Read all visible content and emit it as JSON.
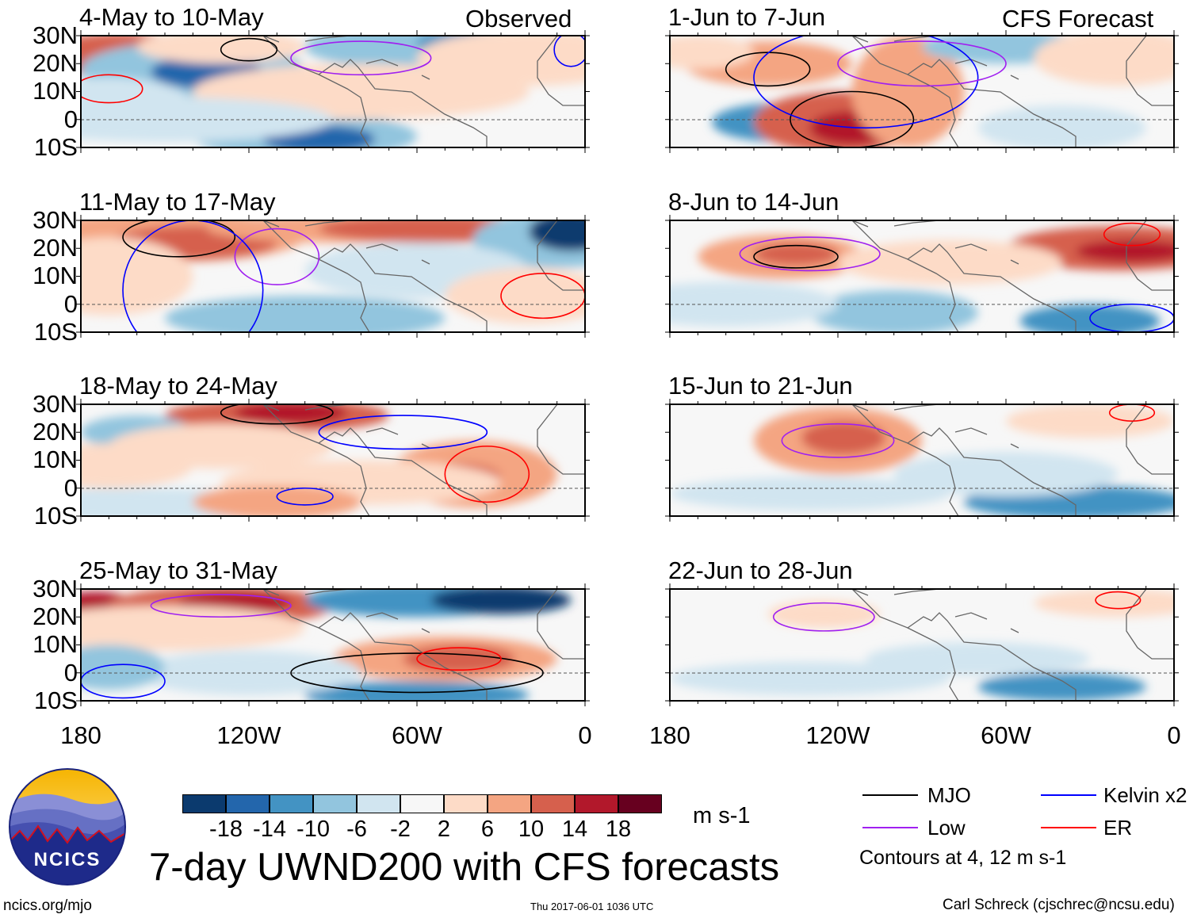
{
  "title": "7-day UWND200 with CFS forecasts",
  "column_labels": {
    "observed": "Observed",
    "forecast": "CFS Forecast"
  },
  "panels": [
    {
      "label": "4-May to 10-May",
      "column": "observed"
    },
    {
      "label": "11-May to 17-May",
      "column": "observed"
    },
    {
      "label": "18-May to 24-May",
      "column": "observed"
    },
    {
      "label": "25-May to 31-May",
      "column": "observed"
    },
    {
      "label": "1-Jun to 7-Jun",
      "column": "forecast"
    },
    {
      "label": "8-Jun to 14-Jun",
      "column": "forecast"
    },
    {
      "label": "15-Jun to 21-Jun",
      "column": "forecast"
    },
    {
      "label": "22-Jun to 28-Jun",
      "column": "forecast"
    }
  ],
  "lat_labels": [
    "30N",
    "20N",
    "10N",
    "0",
    "10S"
  ],
  "lon_labels": [
    "180",
    "120W",
    "60W",
    "0"
  ],
  "colorbar": {
    "ticks": [
      "-18",
      "-14",
      "-10",
      "-6",
      "-2",
      "2",
      "6",
      "10",
      "14",
      "18"
    ],
    "colors": [
      "#0b3a6e",
      "#2366ac",
      "#4393c3",
      "#92c5de",
      "#d1e5f0",
      "#f7f7f7",
      "#fddbc7",
      "#f4a582",
      "#d6604d",
      "#b2182b",
      "#67001f"
    ],
    "units": "m s-1"
  },
  "legend": {
    "items": [
      {
        "label": "MJO",
        "color": "#000000"
      },
      {
        "label": "Kelvin x2",
        "color": "#0000ff"
      },
      {
        "label": "Low",
        "color": "#a020f0"
      },
      {
        "label": "ER",
        "color": "#ff0000"
      }
    ],
    "note": "Contours at 4, 12 m s-1"
  },
  "logo_text": "NCICS",
  "footer": {
    "url": "ncics.org/mjo",
    "timestamp": "Thu 2017-06-01 1036 UTC",
    "credit": "Carl Schreck (cjschrec@ncsu.edu)"
  }
}
